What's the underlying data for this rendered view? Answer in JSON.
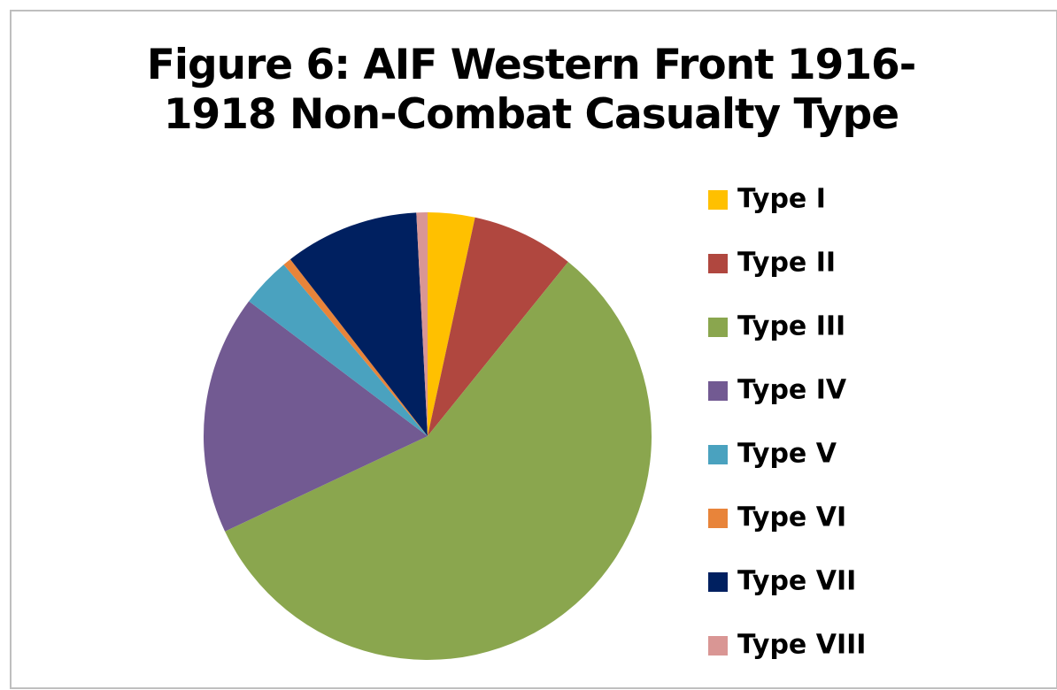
{
  "chart_data": {
    "type": "pie",
    "title": "Figure 6: AIF Western Front 1916-1918 Non-Combat Casualty Type",
    "categories": [
      "Type I",
      "Type II",
      "Type III",
      "Type IV",
      "Type V",
      "Type VI",
      "Type VII",
      "Type VIII"
    ],
    "values": [
      3.4,
      7.4,
      57.2,
      17.3,
      3.6,
      0.6,
      9.7,
      0.8
    ],
    "colors": [
      "#ffc000",
      "#b0473f",
      "#8aa64e",
      "#725a92",
      "#4aa2bf",
      "#e8843a",
      "#002060",
      "#d99694"
    ],
    "legend": "right"
  }
}
